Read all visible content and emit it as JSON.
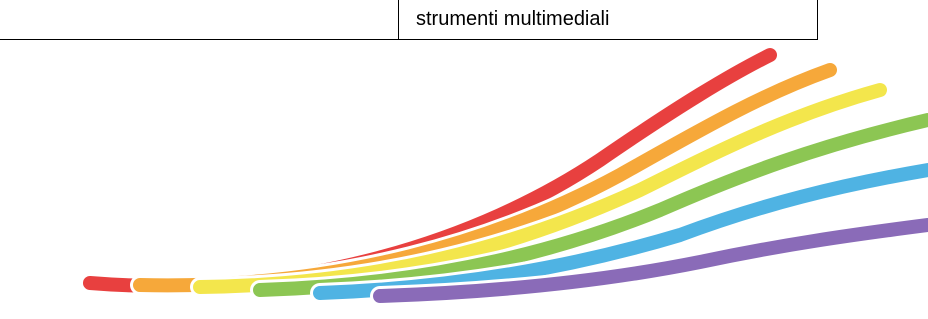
{
  "table": {
    "cell": "strumenti multimediali"
  }
}
